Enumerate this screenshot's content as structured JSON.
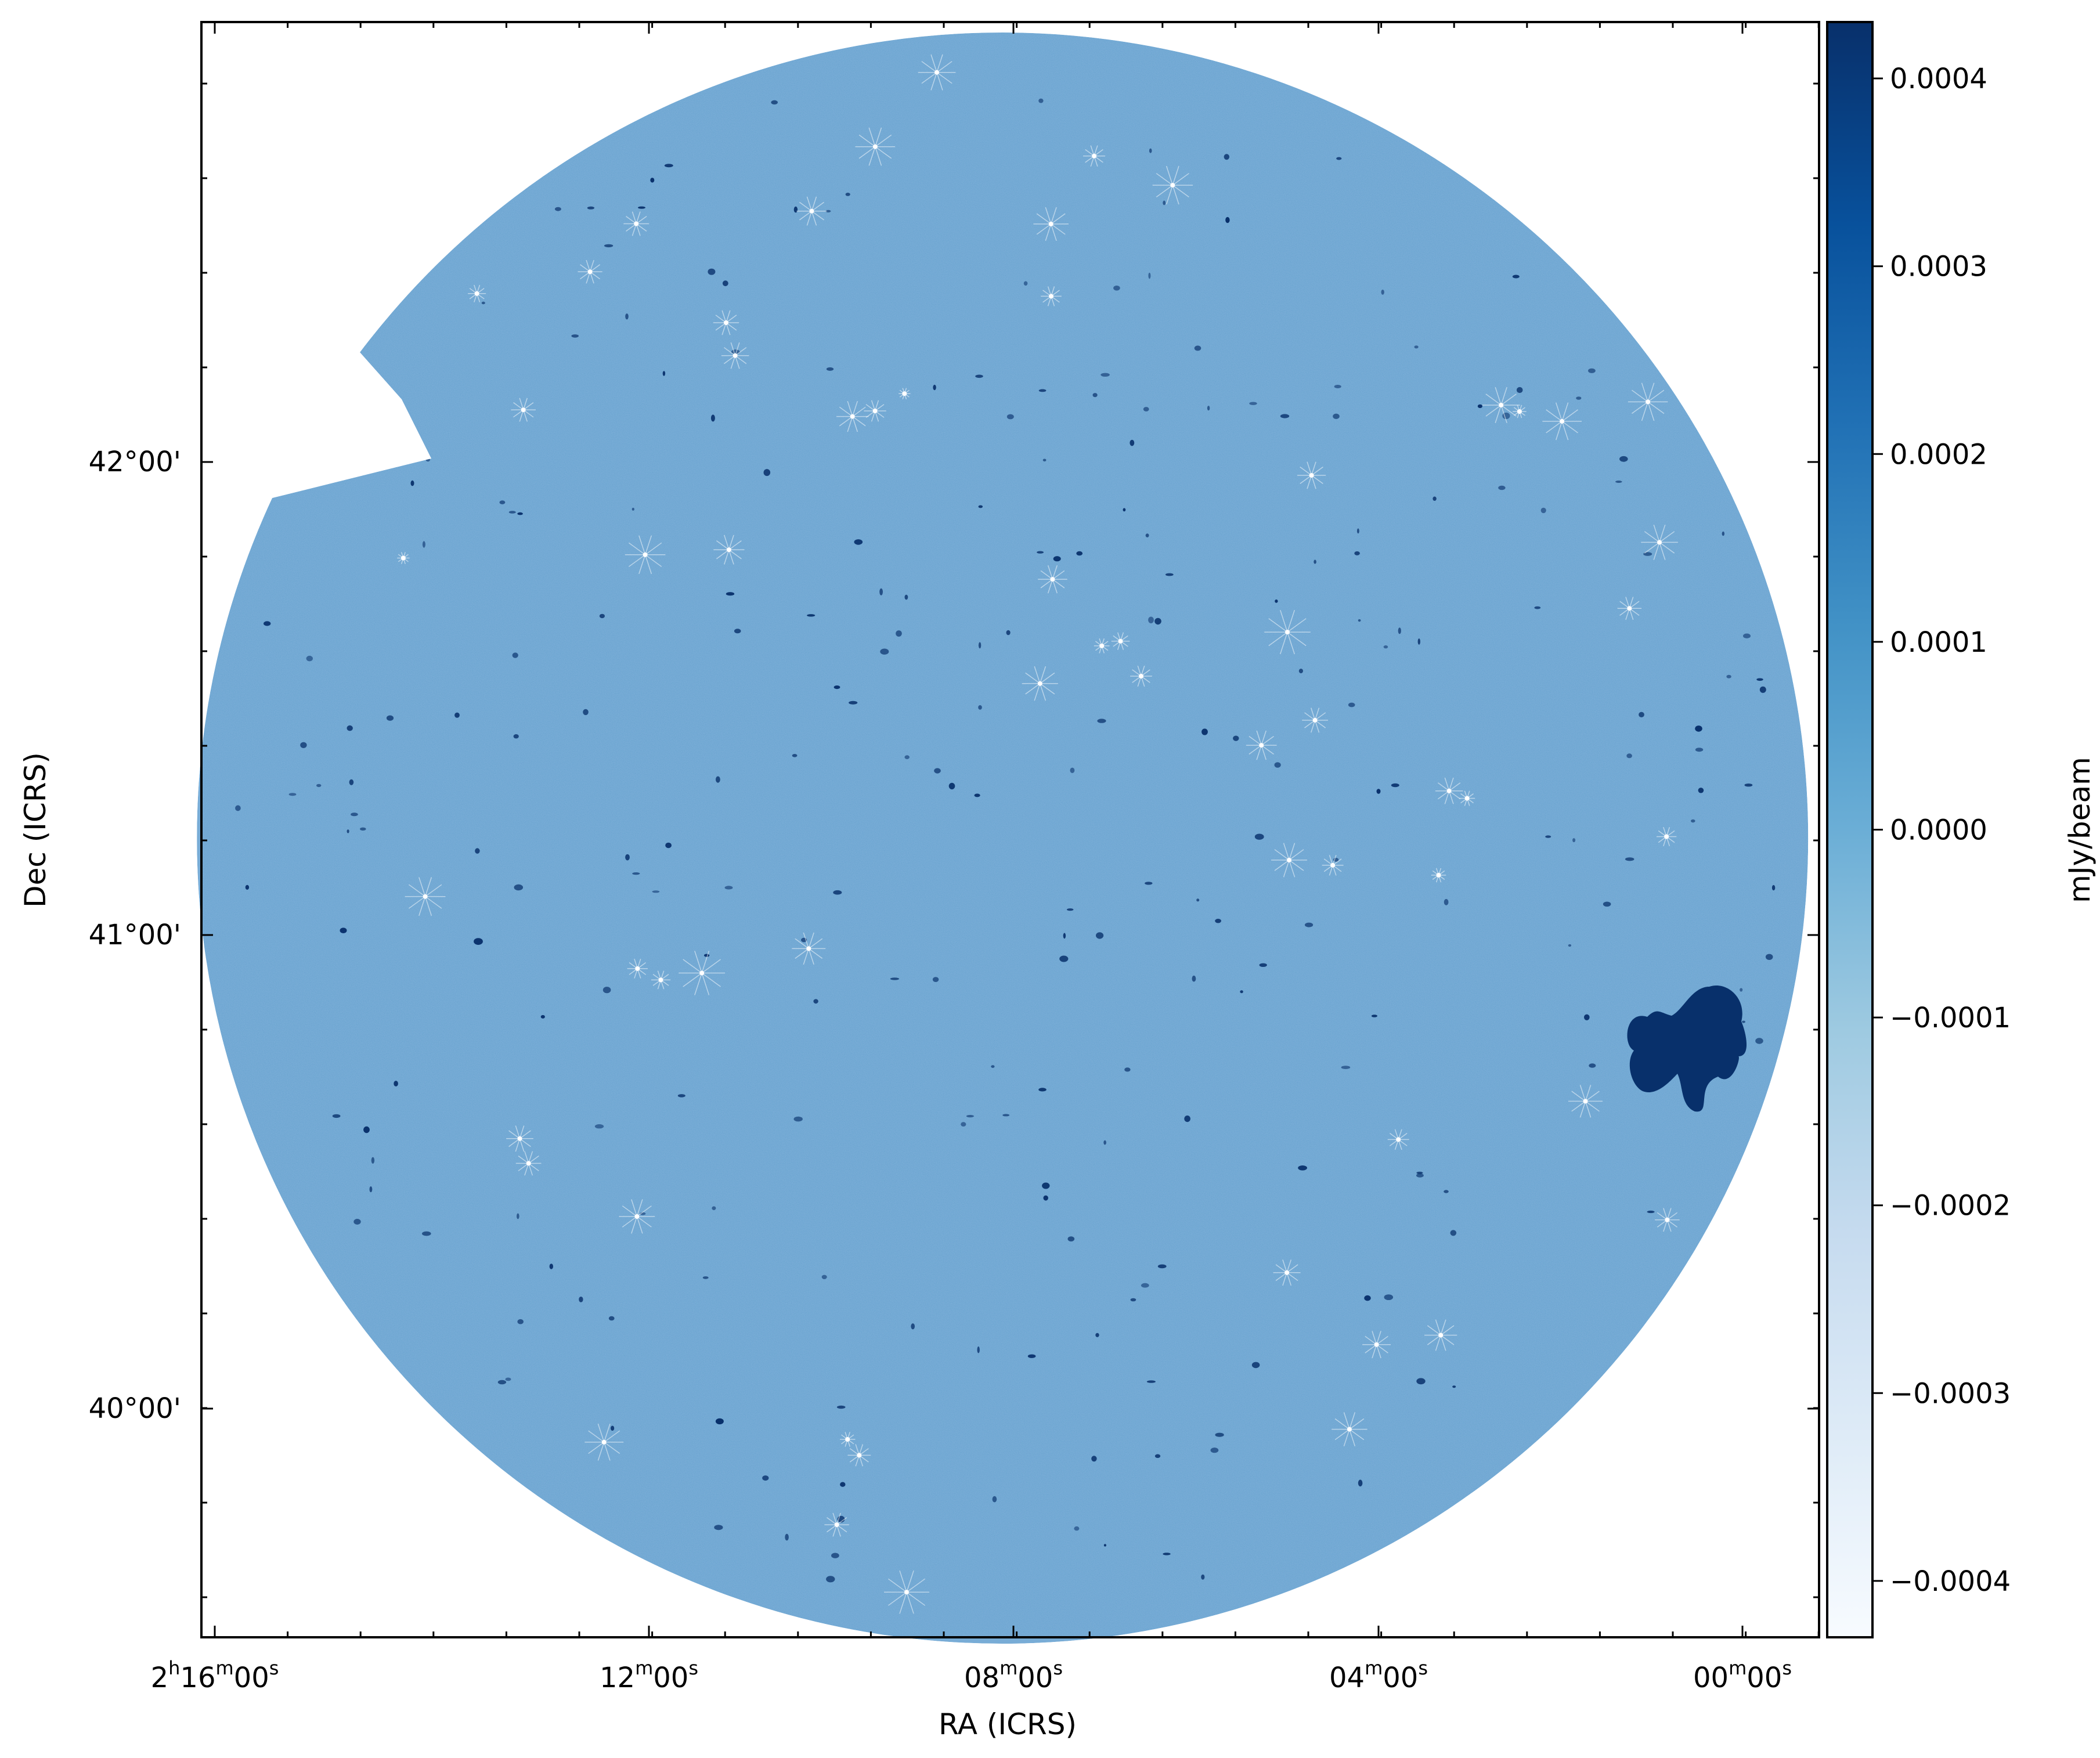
{
  "chart_data": {
    "type": "heatmap",
    "title": "",
    "xlabel": "RA (ICRS)",
    "ylabel": "Dec (ICRS)",
    "x_ticks": [
      {
        "h": "2",
        "m": "16",
        "s": "00",
        "value_seconds": 8160
      },
      {
        "h": "",
        "m": "12",
        "s": "00",
        "value_seconds": 7920
      },
      {
        "h": "",
        "m": "08",
        "s": "00",
        "value_seconds": 7680
      },
      {
        "h": "",
        "m": "04",
        "s": "00",
        "value_seconds": 7440
      },
      {
        "h": "",
        "m": "00",
        "s": "00",
        "value_seconds": 7200
      }
    ],
    "y_ticks": [
      {
        "label": "42°00'",
        "value": 42.0
      },
      {
        "label": "41°00'",
        "value": 41.0
      },
      {
        "label": "40°00'",
        "value": 40.0
      }
    ],
    "colorbar": {
      "label": "mJy/beam",
      "colormap": "Blues",
      "vmin": -0.00043,
      "vmax": 0.00043,
      "ticks": [
        {
          "label": "0.0004",
          "value": 0.0004
        },
        {
          "label": "0.0003",
          "value": 0.0003
        },
        {
          "label": "0.0002",
          "value": 0.0002
        },
        {
          "label": "0.0001",
          "value": 0.0001
        },
        {
          "label": "0.0000",
          "value": 0.0
        },
        {
          "label": "−0.0001",
          "value": -0.0001
        },
        {
          "label": "−0.0002",
          "value": -0.0002
        },
        {
          "label": "−0.0003",
          "value": -0.0003
        },
        {
          "label": "−0.0004",
          "value": -0.0004
        }
      ]
    },
    "colors": {
      "field_background": "#78acd6",
      "source_bright": "#08306b",
      "cmap_low": "#f7fbff",
      "cmap_mid": "#6baed6",
      "cmap_high": "#08306b"
    },
    "grid": false
  }
}
